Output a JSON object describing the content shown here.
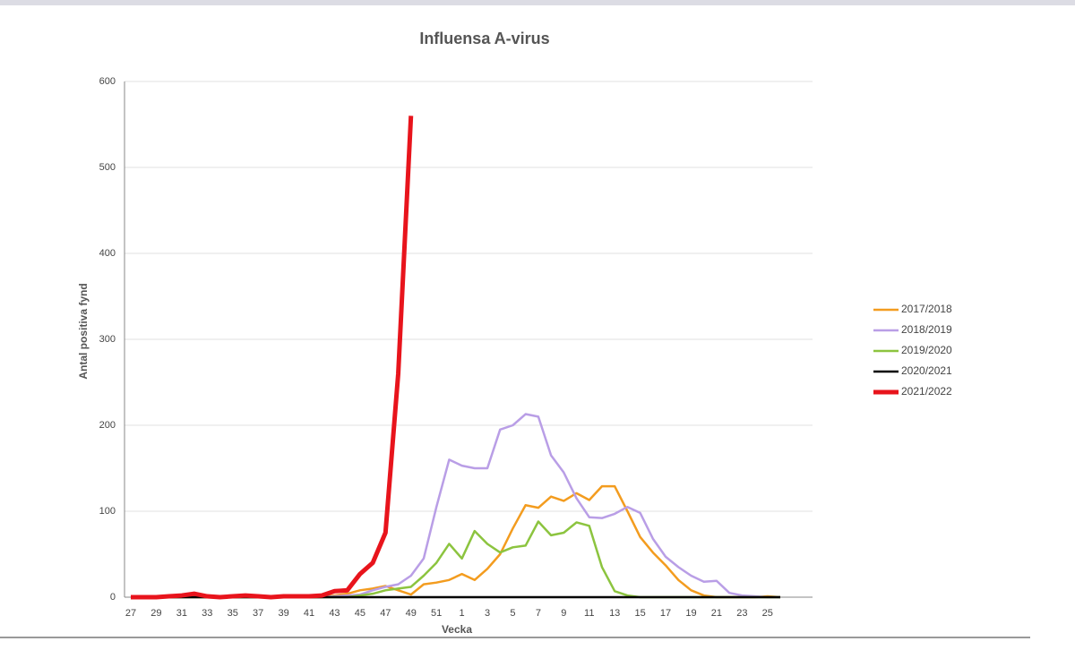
{
  "chart_data": {
    "type": "line",
    "title": "Influensa A-virus",
    "x_label": "Vecka",
    "y_label": "Antal positiva fynd",
    "categories": [
      27,
      null,
      29,
      null,
      31,
      null,
      33,
      null,
      35,
      null,
      37,
      null,
      39,
      null,
      41,
      null,
      43,
      null,
      45,
      null,
      47,
      null,
      49,
      null,
      51,
      null,
      1,
      null,
      3,
      null,
      5,
      null,
      7,
      null,
      9,
      null,
      11,
      null,
      13,
      null,
      15,
      null,
      17,
      null,
      19,
      null,
      21,
      null,
      23,
      null,
      25,
      null
    ],
    "series": [
      {
        "name": "2017/2018",
        "color": "#f39c1f",
        "values": [
          0,
          0,
          0,
          0,
          0,
          0,
          0,
          0,
          0,
          0,
          0,
          0,
          0,
          0,
          0,
          0,
          2,
          4,
          8,
          10,
          13,
          8,
          3,
          15,
          17,
          20,
          27,
          20,
          33,
          50,
          80,
          107,
          104,
          117,
          112,
          121,
          113,
          129,
          129,
          100,
          70,
          52,
          37,
          20,
          8,
          2,
          0,
          0,
          0,
          0,
          1,
          0
        ]
      },
      {
        "name": "2018/2019",
        "color": "#b99ee6",
        "values": [
          0,
          0,
          0,
          0,
          0,
          0,
          0,
          0,
          0,
          0,
          0,
          0,
          0,
          0,
          0,
          0,
          1,
          2,
          3,
          8,
          12,
          15,
          25,
          45,
          105,
          160,
          153,
          150,
          150,
          195,
          200,
          213,
          210,
          165,
          145,
          115,
          93,
          92,
          97,
          105,
          98,
          68,
          47,
          35,
          25,
          18,
          19,
          5,
          2,
          1,
          0,
          0
        ]
      },
      {
        "name": "2019/2020",
        "color": "#8cc43f",
        "values": [
          0,
          0,
          0,
          0,
          0,
          0,
          0,
          0,
          0,
          0,
          0,
          0,
          0,
          0,
          0,
          0,
          0,
          0,
          2,
          4,
          8,
          10,
          12,
          25,
          40,
          62,
          45,
          77,
          62,
          52,
          58,
          60,
          88,
          72,
          75,
          87,
          83,
          35,
          7,
          2,
          0,
          0,
          0,
          0,
          0,
          0,
          0,
          0,
          0,
          0,
          0,
          0
        ]
      },
      {
        "name": "2020/2021",
        "color": "#000000",
        "values": [
          0,
          0,
          0,
          0,
          0,
          0,
          0,
          0,
          0,
          0,
          0,
          0,
          0,
          0,
          0,
          0,
          0,
          0,
          0,
          0,
          0,
          0,
          0,
          0,
          0,
          0,
          0,
          0,
          0,
          0,
          0,
          0,
          0,
          0,
          0,
          0,
          0,
          0,
          0,
          0,
          0,
          0,
          0,
          0,
          0,
          0,
          0,
          0,
          0,
          0,
          0,
          0
        ]
      },
      {
        "name": "2021/2022",
        "color": "#e8141c",
        "values": [
          0,
          0,
          0,
          1,
          2,
          4,
          1,
          0,
          1,
          2,
          1,
          0,
          1,
          1,
          1,
          2,
          7,
          8,
          27,
          40,
          75,
          260,
          560,
          null,
          null,
          null,
          null,
          null,
          null,
          null,
          null,
          null,
          null,
          null,
          null,
          null,
          null,
          null,
          null,
          null,
          null,
          null,
          null,
          null,
          null,
          null,
          null,
          null,
          null,
          null,
          null,
          null
        ]
      }
    ],
    "ylim": [
      0,
      600
    ],
    "yticks": [
      0,
      100,
      200,
      300,
      400,
      500,
      600
    ],
    "grid": true,
    "legend": "right"
  }
}
